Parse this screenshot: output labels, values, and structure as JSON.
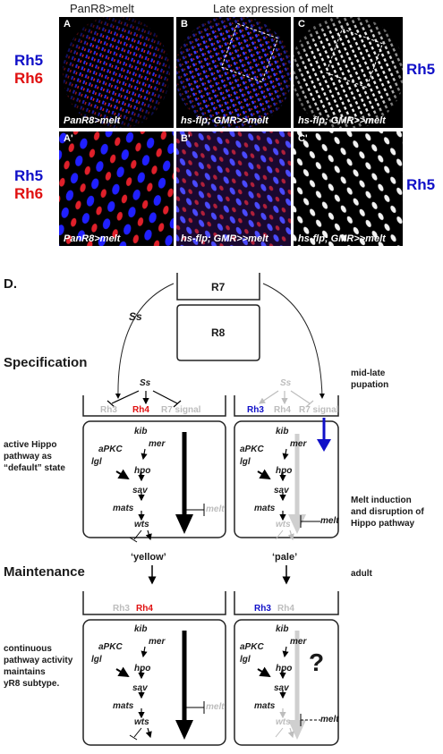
{
  "header": {
    "left_title": "PanR8>melt",
    "right_title": "Late expression of melt"
  },
  "labels": {
    "rh5": "Rh5",
    "rh6": "Rh6"
  },
  "panels": [
    {
      "letter": "A",
      "genotype": "PanR8>melt"
    },
    {
      "letter": "B",
      "genotype": "hs-flp; GMR>>melt"
    },
    {
      "letter": "C",
      "genotype": "hs-flp; GMR>>melt"
    },
    {
      "letter": "A'",
      "genotype": "PanR8>melt"
    },
    {
      "letter": "B'",
      "genotype": "hs-flp; GMR>>melt"
    },
    {
      "letter": "C'",
      "genotype": "hs-flp; GMR>>melt"
    }
  ],
  "diagram": {
    "panel_label": "D.",
    "cell_r7": "R7",
    "cell_r8": "R8",
    "ss_top": "Ss",
    "specification": "Specification",
    "maintenance": "Maintenance",
    "mid_late_pupation_1": "mid-late",
    "mid_late_pupation_2": "pupation",
    "adult": "adult",
    "left_note_1": "active Hippo",
    "left_note_2": "pathway as",
    "left_note_3": "“default” state",
    "right_note_1": "Melt induction",
    "right_note_2": "and disruption of",
    "right_note_3": "Hippo pathway",
    "bottom_note_1": "continuous",
    "bottom_note_2": "pathway activity",
    "bottom_note_3": "maintains",
    "bottom_note_4": "yR8 subtype.",
    "yellow": "‘yellow’",
    "pale": "‘pale’",
    "ss": "Ss",
    "rh3": "Rh3",
    "rh4": "Rh4",
    "r7signal": "R7 signal",
    "kib": "kib",
    "mer": "mer",
    "apkc": "aPKC",
    "lgl": "lgl",
    "hpo": "hpo",
    "sav": "sav",
    "mats": "mats",
    "wts": "wts",
    "melt": "melt",
    "question": "?"
  },
  "colors": {
    "rh5_blue": "#1010c8",
    "rh6_red": "#e01010",
    "inactive_gray": "#bdbdbd",
    "panel_bg": "#000000"
  }
}
